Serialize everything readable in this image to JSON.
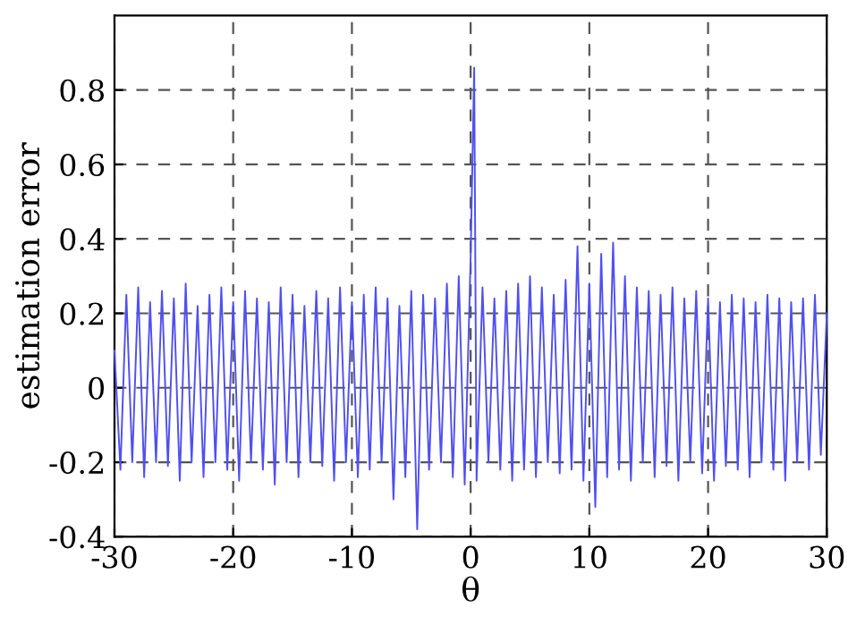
{
  "chart_data": {
    "type": "line",
    "xlabel": "θ",
    "ylabel": "estimation error",
    "xlim": [
      -30,
      30
    ],
    "ylim": [
      -0.4,
      1.0
    ],
    "xticks": [
      -30,
      -20,
      -10,
      0,
      10,
      20,
      30
    ],
    "yticks": [
      -0.4,
      -0.2,
      0,
      0.2,
      0.4,
      0.6,
      0.8
    ],
    "grid": true,
    "line_style": "solid",
    "marker": "none",
    "series": [
      {
        "color": "#5050f0",
        "x": [
          -30,
          -29.5,
          -29,
          -28.5,
          -28,
          -27.5,
          -27,
          -26.5,
          -26,
          -25.5,
          -25,
          -24.5,
          -24,
          -23.5,
          -23,
          -22.5,
          -22,
          -21.5,
          -21,
          -20.5,
          -20,
          -19.5,
          -19,
          -18.5,
          -18,
          -17.5,
          -17,
          -16.5,
          -16,
          -15.5,
          -15,
          -14.5,
          -14,
          -13.5,
          -13,
          -12.5,
          -12,
          -11.5,
          -11,
          -10.5,
          -10,
          -9.5,
          -9,
          -8.5,
          -8,
          -7.5,
          -7,
          -6.5,
          -6,
          -5.5,
          -5,
          -4.5,
          -4,
          -3.5,
          -3,
          -2.5,
          -2,
          -1.5,
          -1,
          -0.5,
          0,
          0.3,
          0.5,
          1,
          1.5,
          2,
          2.5,
          3,
          3.5,
          4,
          4.5,
          5,
          5.5,
          6,
          6.5,
          7,
          7.5,
          8,
          8.5,
          9,
          9.5,
          10,
          10.5,
          11,
          11.5,
          12,
          12.5,
          13,
          13.5,
          14,
          14.5,
          15,
          15.5,
          16,
          16.5,
          17,
          17.5,
          18,
          18.5,
          19,
          19.5,
          20,
          20.5,
          21,
          21.5,
          22,
          22.5,
          23,
          23.5,
          24,
          24.5,
          25,
          25.5,
          26,
          26.5,
          27,
          27.5,
          28,
          28.5,
          29,
          29.5,
          30
        ],
        "values": [
          0.1,
          -0.22,
          0.25,
          -0.2,
          0.27,
          -0.24,
          0.23,
          -0.2,
          0.26,
          -0.21,
          0.24,
          -0.25,
          0.28,
          -0.2,
          0.22,
          -0.24,
          0.25,
          -0.2,
          0.27,
          -0.22,
          0.23,
          -0.25,
          0.26,
          -0.2,
          0.24,
          -0.22,
          0.23,
          -0.26,
          0.27,
          -0.2,
          0.25,
          -0.24,
          0.22,
          -0.2,
          0.26,
          -0.21,
          0.24,
          -0.25,
          0.27,
          -0.2,
          0.23,
          -0.24,
          0.25,
          -0.22,
          0.27,
          -0.2,
          0.24,
          -0.3,
          0.22,
          -0.24,
          0.26,
          -0.38,
          0.25,
          -0.22,
          0.24,
          -0.2,
          0.28,
          -0.24,
          0.3,
          -0.26,
          0.35,
          0.86,
          -0.25,
          0.27,
          -0.2,
          0.24,
          -0.22,
          0.26,
          -0.25,
          0.28,
          -0.22,
          0.3,
          -0.24,
          0.27,
          -0.2,
          0.25,
          -0.23,
          0.29,
          -0.22,
          0.38,
          -0.25,
          0.28,
          -0.32,
          0.36,
          -0.24,
          0.39,
          -0.22,
          0.3,
          -0.25,
          0.27,
          -0.2,
          0.26,
          -0.24,
          0.25,
          -0.21,
          0.27,
          -0.25,
          0.24,
          -0.2,
          0.26,
          -0.23,
          0.24,
          -0.25,
          0.23,
          -0.21,
          0.25,
          -0.22,
          0.24,
          -0.24,
          0.23,
          -0.2,
          0.25,
          -0.22,
          0.24,
          -0.25,
          0.23,
          -0.2,
          0.24,
          -0.22,
          0.25,
          -0.18,
          0.2
        ]
      }
    ]
  }
}
